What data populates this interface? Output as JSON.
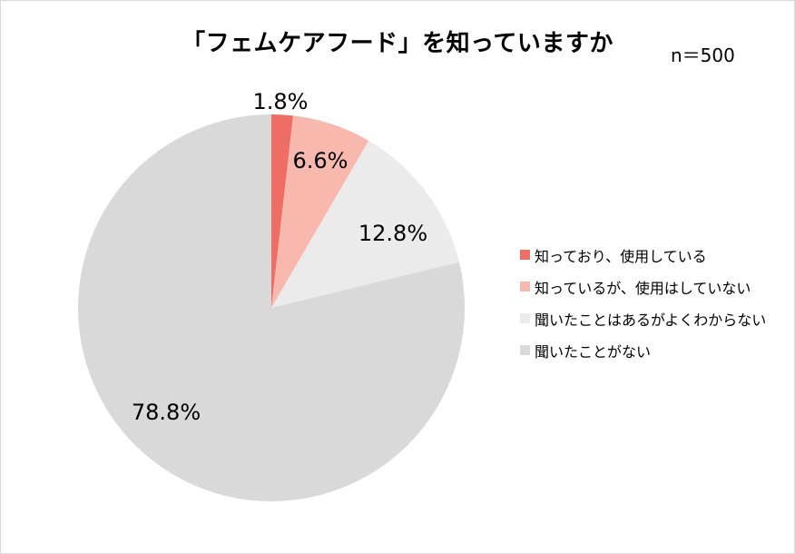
{
  "chart_data": {
    "type": "pie",
    "title": "「フェムケアフード」を知っていますか",
    "sample_size": "n＝500",
    "slices": [
      {
        "label": "知っており、使用している",
        "value": 1.8,
        "value_label": "1.8%",
        "color": "#ee6e66"
      },
      {
        "label": "知っているが、使用はしていない",
        "value": 6.6,
        "value_label": "6.6%",
        "color": "#f9b8ae"
      },
      {
        "label": "聞いたことはあるがよくわからない",
        "value": 12.8,
        "value_label": "12.8%",
        "color": "#ebebeb"
      },
      {
        "label": "聞いたことがない",
        "value": 78.8,
        "value_label": "78.8%",
        "color": "#d9d9d9"
      }
    ],
    "start_angle_deg": 0,
    "direction": "clockwise",
    "legend_position": "right"
  }
}
